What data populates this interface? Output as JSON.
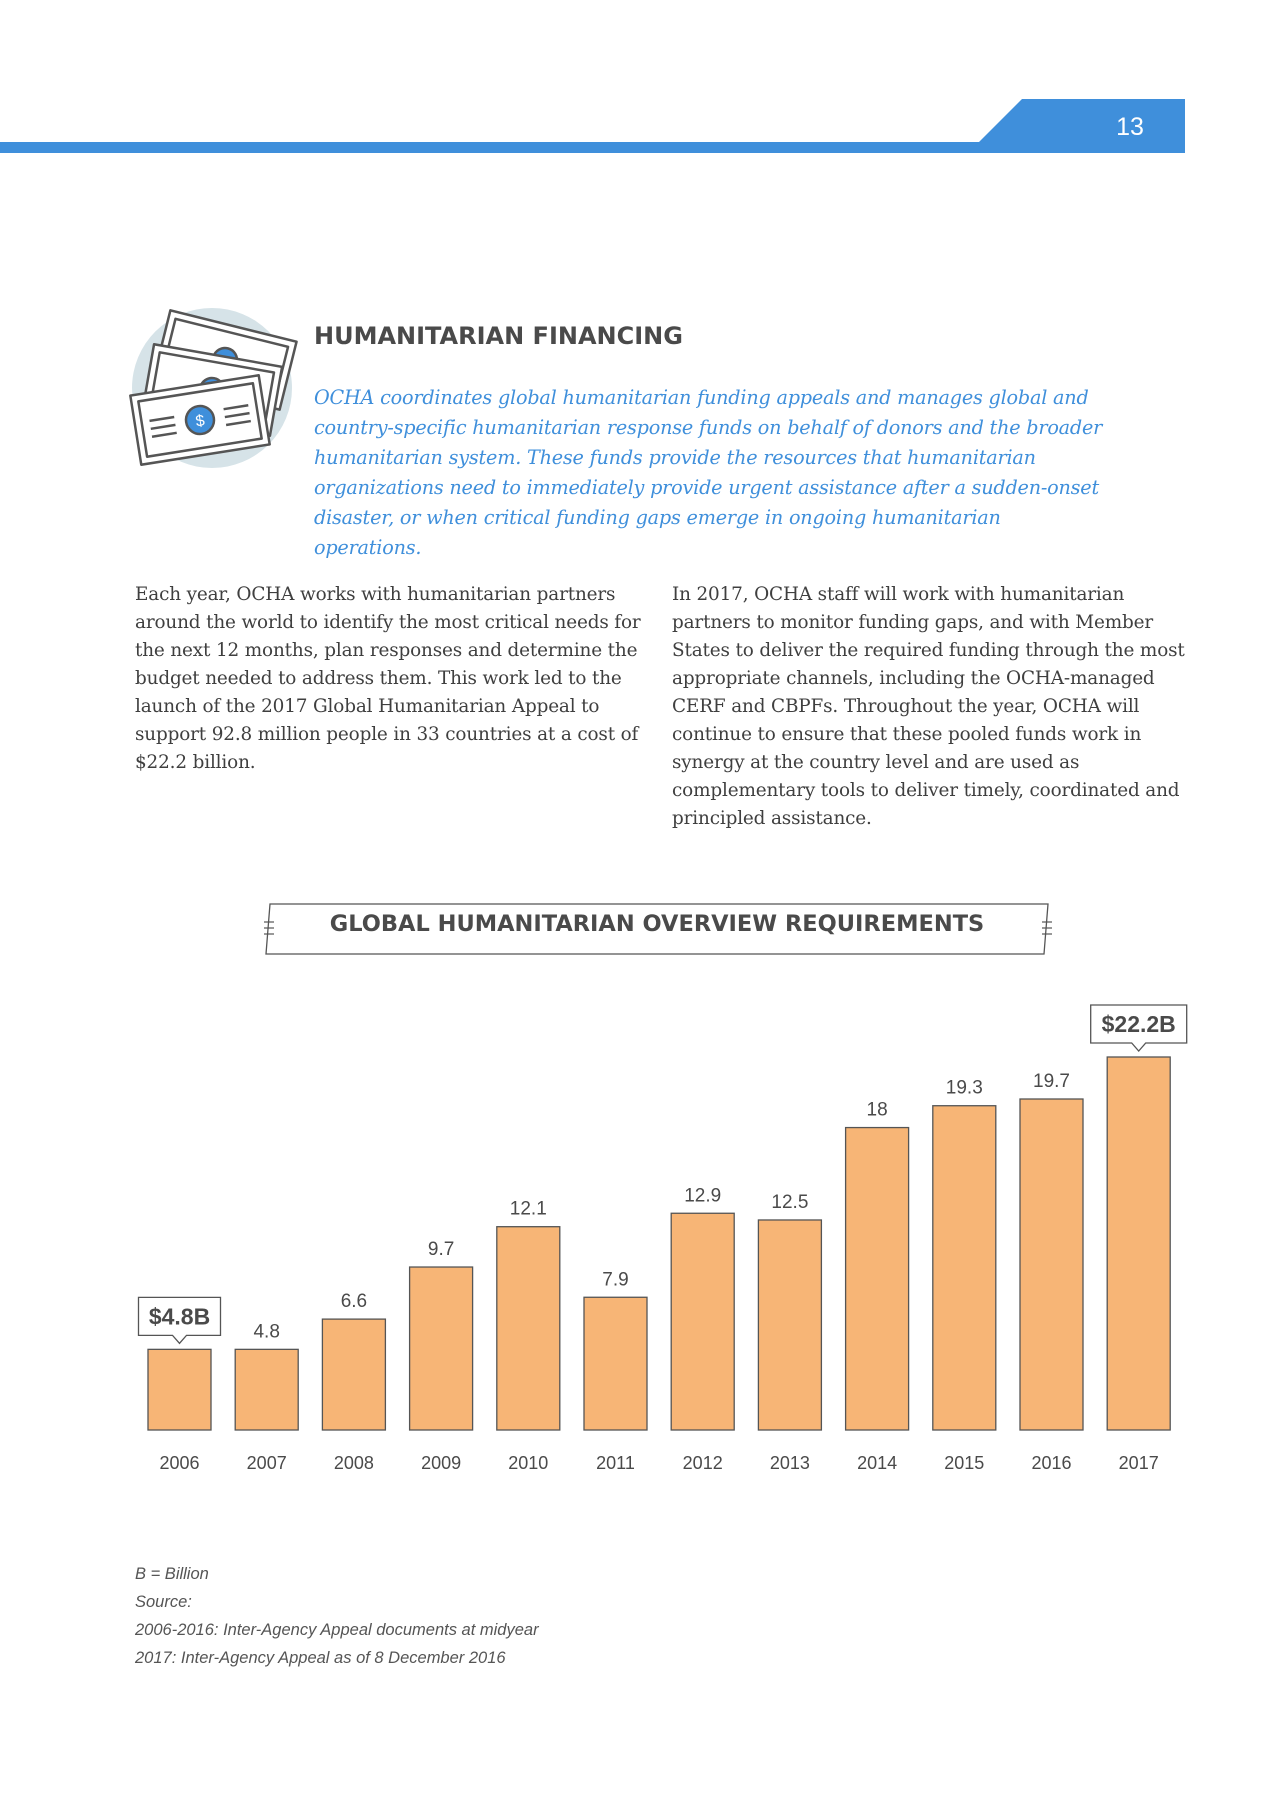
{
  "page": {
    "number": "13"
  },
  "colors": {
    "accent": "#3f8fdb",
    "bar_fill": "#f7b576",
    "bar_stroke": "#555555",
    "icon_circle": "#d6e3e8"
  },
  "section": {
    "icon": "money-bills-icon",
    "title": "HUMANITARIAN FINANCING",
    "intro": "OCHA coordinates global humanitarian funding appeals and manages global and country-specific humanitarian response funds on behalf of donors and the broader humanitarian system. These funds provide the resources that humanitarian organizations need to immediately provide urgent assistance after a sudden-onset disaster, or when critical funding gaps emerge in ongoing humanitarian operations."
  },
  "body": {
    "left": "Each year, OCHA works with humanitarian partners around the world to identify the most critical needs for the next 12 months, plan responses and determine the budget needed to address them. This work led to the launch of the 2017 Global Humanitarian Appeal to support 92.8 million people in 33 countries at a cost of $22.2 billion.",
    "right": "In 2017, OCHA staff will work with humanitarian partners to monitor funding gaps, and with Member States to deliver the required funding through the most appropriate channels, including the OCHA-managed CERF and CBPFs. Throughout the year, OCHA will continue to ensure that these pooled funds work in synergy at the country level and are used as complementary tools to deliver timely, coordinated and principled assistance."
  },
  "chart_data": {
    "type": "bar",
    "title": "GLOBAL HUMANITARIAN OVERVIEW REQUIREMENTS",
    "xlabel": "",
    "ylabel": "",
    "categories": [
      "2006",
      "2007",
      "2008",
      "2009",
      "2010",
      "2011",
      "2012",
      "2013",
      "2014",
      "2015",
      "2016",
      "2017"
    ],
    "values": [
      4.8,
      4.8,
      6.6,
      9.7,
      12.1,
      7.9,
      12.9,
      12.5,
      18,
      19.3,
      19.7,
      22.2
    ],
    "data_labels": [
      "",
      "4.8",
      "6.6",
      "9.7",
      "12.1",
      "7.9",
      "12.9",
      "12.5",
      "18",
      "19.3",
      "19.7",
      ""
    ],
    "callouts": [
      {
        "category": "2006",
        "text": "$4.8B"
      },
      {
        "category": "2017",
        "text": "$22.2B"
      }
    ],
    "ylim": [
      0,
      22.2
    ],
    "grid": false,
    "legend": "none"
  },
  "notes": [
    "B = Billion",
    "Source:",
    "2006-2016: Inter-Agency Appeal documents at midyear",
    "2017: Inter-Agency Appeal as of 8 December 2016"
  ]
}
